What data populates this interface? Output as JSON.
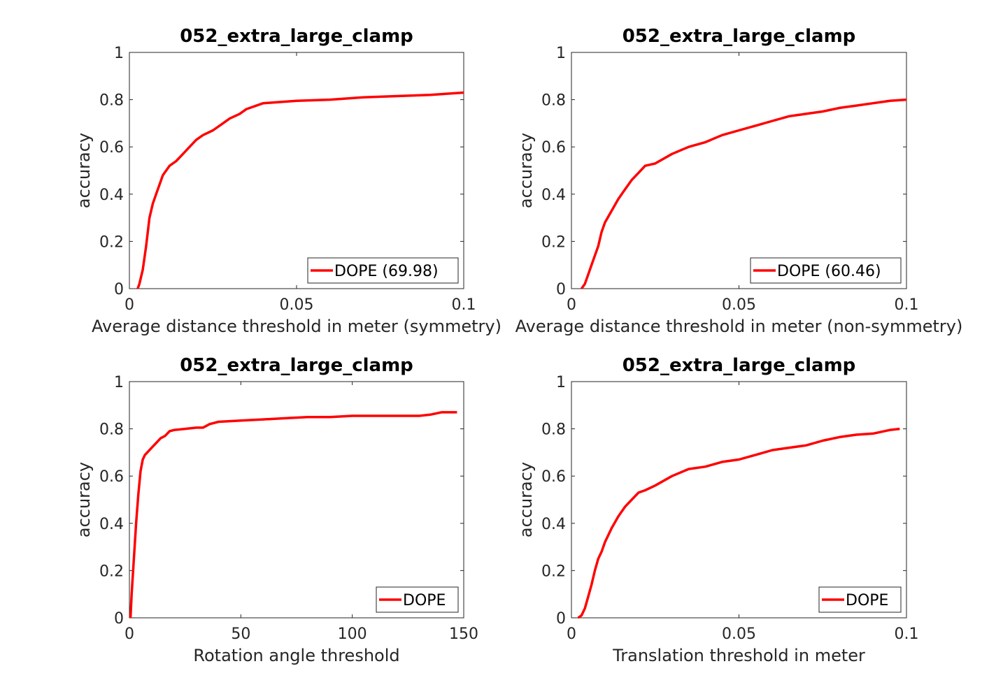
{
  "chart_data": [
    {
      "type": "line",
      "title": "052_extra_large_clamp",
      "xlabel": "Average distance threshold in meter (symmetry)",
      "ylabel": "accuracy",
      "xlim": [
        0,
        0.1
      ],
      "ylim": [
        0,
        1
      ],
      "xticks": [
        "0",
        "0.05",
        "0.1"
      ],
      "yticks": [
        "0",
        "0.2",
        "0.4",
        "0.6",
        "0.8",
        "1"
      ],
      "legend_position": "bottom-right",
      "grid": false,
      "series": [
        {
          "name": "DOPE (69.98)",
          "color": "#ff0000",
          "x": [
            0.0025,
            0.003,
            0.004,
            0.005,
            0.006,
            0.007,
            0.008,
            0.009,
            0.01,
            0.011,
            0.012,
            0.014,
            0.016,
            0.018,
            0.02,
            0.022,
            0.025,
            0.028,
            0.03,
            0.033,
            0.035,
            0.04,
            0.045,
            0.05,
            0.06,
            0.07,
            0.08,
            0.09,
            0.1
          ],
          "y": [
            0,
            0.02,
            0.08,
            0.18,
            0.3,
            0.36,
            0.4,
            0.44,
            0.48,
            0.5,
            0.52,
            0.54,
            0.57,
            0.6,
            0.63,
            0.65,
            0.67,
            0.7,
            0.72,
            0.74,
            0.76,
            0.785,
            0.79,
            0.795,
            0.8,
            0.81,
            0.815,
            0.82,
            0.83
          ]
        }
      ]
    },
    {
      "type": "line",
      "title": "052_extra_large_clamp",
      "xlabel": "Average distance threshold in meter (non-symmetry)",
      "ylabel": "accuracy",
      "xlim": [
        0,
        0.1
      ],
      "ylim": [
        0,
        1
      ],
      "xticks": [
        "0",
        "0.05",
        "0.1"
      ],
      "yticks": [
        "0",
        "0.2",
        "0.4",
        "0.6",
        "0.8",
        "1"
      ],
      "legend_position": "bottom-right",
      "grid": false,
      "series": [
        {
          "name": "DOPE (60.46)",
          "color": "#ff0000",
          "x": [
            0.003,
            0.004,
            0.005,
            0.006,
            0.007,
            0.008,
            0.009,
            0.01,
            0.012,
            0.014,
            0.016,
            0.018,
            0.02,
            0.022,
            0.025,
            0.03,
            0.035,
            0.04,
            0.045,
            0.05,
            0.055,
            0.06,
            0.065,
            0.07,
            0.075,
            0.08,
            0.085,
            0.09,
            0.095,
            0.1
          ],
          "y": [
            0,
            0.02,
            0.06,
            0.1,
            0.14,
            0.18,
            0.24,
            0.28,
            0.33,
            0.38,
            0.42,
            0.46,
            0.49,
            0.52,
            0.53,
            0.57,
            0.6,
            0.62,
            0.65,
            0.67,
            0.69,
            0.71,
            0.73,
            0.74,
            0.75,
            0.765,
            0.775,
            0.785,
            0.795,
            0.8
          ]
        }
      ]
    },
    {
      "type": "line",
      "title": "052_extra_large_clamp",
      "xlabel": "Rotation angle threshold",
      "ylabel": "accuracy",
      "xlim": [
        0,
        150
      ],
      "ylim": [
        0,
        1
      ],
      "xticks": [
        "0",
        "50",
        "100",
        "150"
      ],
      "yticks": [
        "0",
        "0.2",
        "0.4",
        "0.6",
        "0.8",
        "1"
      ],
      "legend_position": "bottom-right",
      "grid": false,
      "series": [
        {
          "name": "DOPE",
          "color": "#ff0000",
          "x": [
            0.5,
            1,
            2,
            3,
            4,
            5,
            6,
            7,
            8,
            10,
            12,
            14,
            16,
            18,
            20,
            25,
            30,
            33,
            36,
            40,
            50,
            60,
            70,
            80,
            90,
            100,
            110,
            120,
            130,
            135,
            140,
            147
          ],
          "y": [
            0,
            0.1,
            0.25,
            0.4,
            0.52,
            0.62,
            0.67,
            0.69,
            0.7,
            0.72,
            0.74,
            0.76,
            0.77,
            0.79,
            0.795,
            0.8,
            0.805,
            0.805,
            0.82,
            0.83,
            0.835,
            0.84,
            0.845,
            0.85,
            0.85,
            0.855,
            0.855,
            0.855,
            0.855,
            0.86,
            0.87,
            0.87
          ]
        }
      ]
    },
    {
      "type": "line",
      "title": "052_extra_large_clamp",
      "xlabel": "Translation threshold in meter",
      "ylabel": "accuracy",
      "xlim": [
        0,
        0.1
      ],
      "ylim": [
        0,
        1
      ],
      "xticks": [
        "0",
        "0.05",
        "0.1"
      ],
      "yticks": [
        "0",
        "0.2",
        "0.4",
        "0.6",
        "0.8",
        "1"
      ],
      "legend_position": "bottom-right",
      "grid": false,
      "series": [
        {
          "name": "DOPE",
          "color": "#ff0000",
          "x": [
            0.002,
            0.003,
            0.004,
            0.005,
            0.006,
            0.007,
            0.008,
            0.009,
            0.01,
            0.012,
            0.014,
            0.016,
            0.018,
            0.02,
            0.022,
            0.025,
            0.03,
            0.035,
            0.04,
            0.045,
            0.05,
            0.055,
            0.06,
            0.065,
            0.07,
            0.075,
            0.08,
            0.085,
            0.09,
            0.095,
            0.098
          ],
          "y": [
            0,
            0.01,
            0.04,
            0.09,
            0.14,
            0.2,
            0.25,
            0.28,
            0.32,
            0.38,
            0.43,
            0.47,
            0.5,
            0.53,
            0.54,
            0.56,
            0.6,
            0.63,
            0.64,
            0.66,
            0.67,
            0.69,
            0.71,
            0.72,
            0.73,
            0.75,
            0.765,
            0.775,
            0.78,
            0.795,
            0.8
          ]
        }
      ]
    }
  ]
}
